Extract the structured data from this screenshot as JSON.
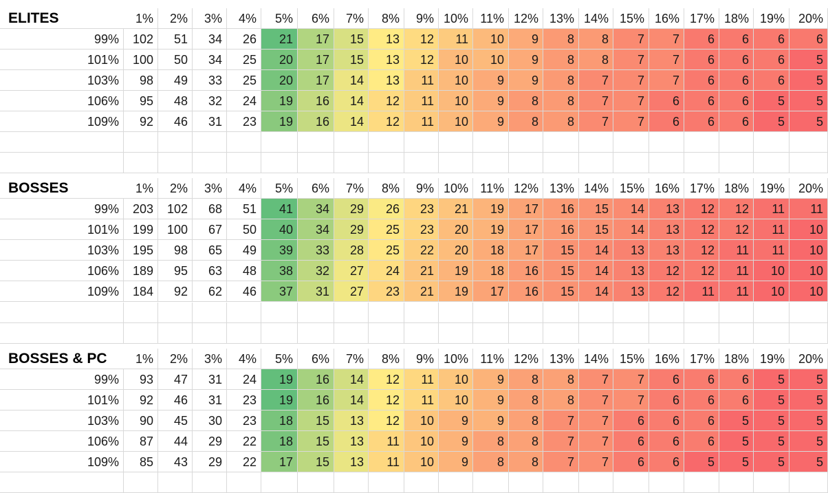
{
  "colors": {
    "scale_high": "#63be7b",
    "scale_mid": "#ffeb84",
    "scale_low": "#f8696b",
    "gridline": "#d9d9d9"
  },
  "tables": [
    {
      "title": "ELITES",
      "columns": [
        "1%",
        "2%",
        "3%",
        "4%",
        "5%",
        "6%",
        "7%",
        "8%",
        "9%",
        "10%",
        "11%",
        "12%",
        "13%",
        "14%",
        "15%",
        "16%",
        "17%",
        "18%",
        "19%",
        "20%"
      ],
      "rows": [
        {
          "label": "99%",
          "values": [
            102,
            51,
            34,
            26,
            21,
            17,
            15,
            13,
            12,
            11,
            10,
            9,
            8,
            8,
            7,
            7,
            6,
            6,
            6,
            6
          ]
        },
        {
          "label": "101%",
          "values": [
            100,
            50,
            34,
            25,
            20,
            17,
            15,
            13,
            12,
            10,
            10,
            9,
            8,
            8,
            7,
            7,
            6,
            6,
            6,
            5
          ]
        },
        {
          "label": "103%",
          "values": [
            98,
            49,
            33,
            25,
            20,
            17,
            14,
            13,
            11,
            10,
            9,
            9,
            8,
            7,
            7,
            7,
            6,
            6,
            6,
            5
          ]
        },
        {
          "label": "106%",
          "values": [
            95,
            48,
            32,
            24,
            19,
            16,
            14,
            12,
            11,
            10,
            9,
            8,
            8,
            7,
            7,
            6,
            6,
            6,
            5,
            5
          ]
        },
        {
          "label": "109%",
          "values": [
            92,
            46,
            31,
            23,
            19,
            16,
            14,
            12,
            11,
            10,
            9,
            8,
            8,
            7,
            7,
            6,
            6,
            6,
            5,
            5
          ]
        }
      ]
    },
    {
      "title": "BOSSES",
      "columns": [
        "1%",
        "2%",
        "3%",
        "4%",
        "5%",
        "6%",
        "7%",
        "8%",
        "9%",
        "10%",
        "11%",
        "12%",
        "13%",
        "14%",
        "15%",
        "16%",
        "17%",
        "18%",
        "19%",
        "20%"
      ],
      "rows": [
        {
          "label": "99%",
          "values": [
            203,
            102,
            68,
            51,
            41,
            34,
            29,
            26,
            23,
            21,
            19,
            17,
            16,
            15,
            14,
            13,
            12,
            12,
            11,
            11
          ]
        },
        {
          "label": "101%",
          "values": [
            199,
            100,
            67,
            50,
            40,
            34,
            29,
            25,
            23,
            20,
            19,
            17,
            16,
            15,
            14,
            13,
            12,
            12,
            11,
            10
          ]
        },
        {
          "label": "103%",
          "values": [
            195,
            98,
            65,
            49,
            39,
            33,
            28,
            25,
            22,
            20,
            18,
            17,
            15,
            14,
            13,
            13,
            12,
            11,
            11,
            10
          ]
        },
        {
          "label": "106%",
          "values": [
            189,
            95,
            63,
            48,
            38,
            32,
            27,
            24,
            21,
            19,
            18,
            16,
            15,
            14,
            13,
            12,
            12,
            11,
            10,
            10
          ]
        },
        {
          "label": "109%",
          "values": [
            184,
            92,
            62,
            46,
            37,
            31,
            27,
            23,
            21,
            19,
            17,
            16,
            15,
            14,
            13,
            12,
            11,
            11,
            10,
            10
          ]
        }
      ]
    },
    {
      "title": "BOSSES & PC",
      "columns": [
        "1%",
        "2%",
        "3%",
        "4%",
        "5%",
        "6%",
        "7%",
        "8%",
        "9%",
        "10%",
        "11%",
        "12%",
        "13%",
        "14%",
        "15%",
        "16%",
        "17%",
        "18%",
        "19%",
        "20%"
      ],
      "rows": [
        {
          "label": "99%",
          "values": [
            93,
            47,
            31,
            24,
            19,
            16,
            14,
            12,
            11,
            10,
            9,
            8,
            8,
            7,
            7,
            6,
            6,
            6,
            5,
            5
          ]
        },
        {
          "label": "101%",
          "values": [
            92,
            46,
            31,
            23,
            19,
            16,
            14,
            12,
            11,
            10,
            9,
            8,
            8,
            7,
            7,
            6,
            6,
            6,
            5,
            5
          ]
        },
        {
          "label": "103%",
          "values": [
            90,
            45,
            30,
            23,
            18,
            15,
            13,
            12,
            10,
            9,
            9,
            8,
            7,
            7,
            6,
            6,
            6,
            5,
            5,
            5
          ]
        },
        {
          "label": "106%",
          "values": [
            87,
            44,
            29,
            22,
            18,
            15,
            13,
            11,
            10,
            9,
            8,
            8,
            7,
            7,
            6,
            6,
            6,
            5,
            5,
            5
          ]
        },
        {
          "label": "109%",
          "values": [
            85,
            43,
            29,
            22,
            17,
            15,
            13,
            11,
            10,
            9,
            8,
            8,
            7,
            7,
            6,
            6,
            5,
            5,
            5,
            5
          ]
        }
      ]
    }
  ]
}
